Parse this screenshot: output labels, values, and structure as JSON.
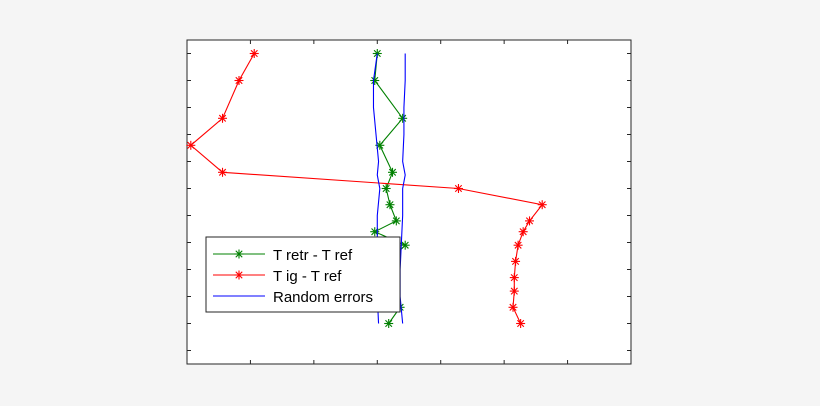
{
  "chart_data": {
    "type": "line",
    "title": "",
    "xlabel": "",
    "ylabel": "",
    "xlim": [
      -3,
      4
    ],
    "ylim": [
      0.5,
      12.5
    ],
    "x_ticks": [
      -3,
      -2,
      -1,
      0,
      1,
      2,
      3,
      4
    ],
    "y_ticks": [
      1,
      2,
      3,
      4,
      5,
      6,
      7,
      8,
      9,
      10,
      11,
      12
    ],
    "tick_labels_shown": false,
    "grid": false,
    "legend_position": "lower-left",
    "series": [
      {
        "name": "T retr - T ref",
        "color": "#008000",
        "marker": "asterisk",
        "points": [
          [
            0.0,
            12
          ],
          [
            -0.04,
            11
          ],
          [
            0.4,
            9.6
          ],
          [
            0.04,
            8.6
          ],
          [
            0.24,
            7.6
          ],
          [
            0.14,
            7.0
          ],
          [
            0.2,
            6.4
          ],
          [
            0.3,
            5.8
          ],
          [
            -0.04,
            5.4
          ],
          [
            0.44,
            4.9
          ],
          [
            0.18,
            4.3
          ],
          [
            0.1,
            3.7
          ],
          [
            0.1,
            3.2
          ],
          [
            0.36,
            2.6
          ],
          [
            0.18,
            2.0
          ]
        ]
      },
      {
        "name": "T ig - T ref",
        "color": "#ff0000",
        "marker": "asterisk",
        "points": [
          [
            -1.94,
            12
          ],
          [
            -2.18,
            11
          ],
          [
            -2.44,
            9.6
          ],
          [
            -2.94,
            8.6
          ],
          [
            -2.44,
            7.6
          ],
          [
            1.28,
            7.0
          ],
          [
            2.6,
            6.4
          ],
          [
            2.4,
            5.8
          ],
          [
            2.3,
            5.4
          ],
          [
            2.22,
            4.9
          ],
          [
            2.18,
            4.3
          ],
          [
            2.16,
            3.7
          ],
          [
            2.16,
            3.2
          ],
          [
            2.14,
            2.6
          ],
          [
            2.26,
            2.0
          ]
        ]
      },
      {
        "name": "Random errors",
        "color": "#0000ff",
        "marker": "none",
        "lines": [
          [
            [
              0.0,
              12
            ],
            [
              -0.06,
              11
            ],
            [
              -0.06,
              10
            ],
            [
              -0.02,
              9
            ],
            [
              0.02,
              8
            ],
            [
              0.0,
              7.5
            ],
            [
              0.04,
              7
            ],
            [
              0.0,
              6
            ],
            [
              0.0,
              5
            ],
            [
              -0.02,
              4
            ],
            [
              0.0,
              3
            ],
            [
              0.02,
              2
            ]
          ],
          [
            [
              0.44,
              12
            ],
            [
              0.44,
              11
            ],
            [
              0.42,
              10
            ],
            [
              0.42,
              9
            ],
            [
              0.4,
              8
            ],
            [
              0.44,
              7.5
            ],
            [
              0.4,
              7
            ],
            [
              0.4,
              6
            ],
            [
              0.38,
              5
            ],
            [
              0.36,
              4
            ],
            [
              0.36,
              3
            ],
            [
              0.4,
              2
            ]
          ]
        ]
      }
    ]
  }
}
